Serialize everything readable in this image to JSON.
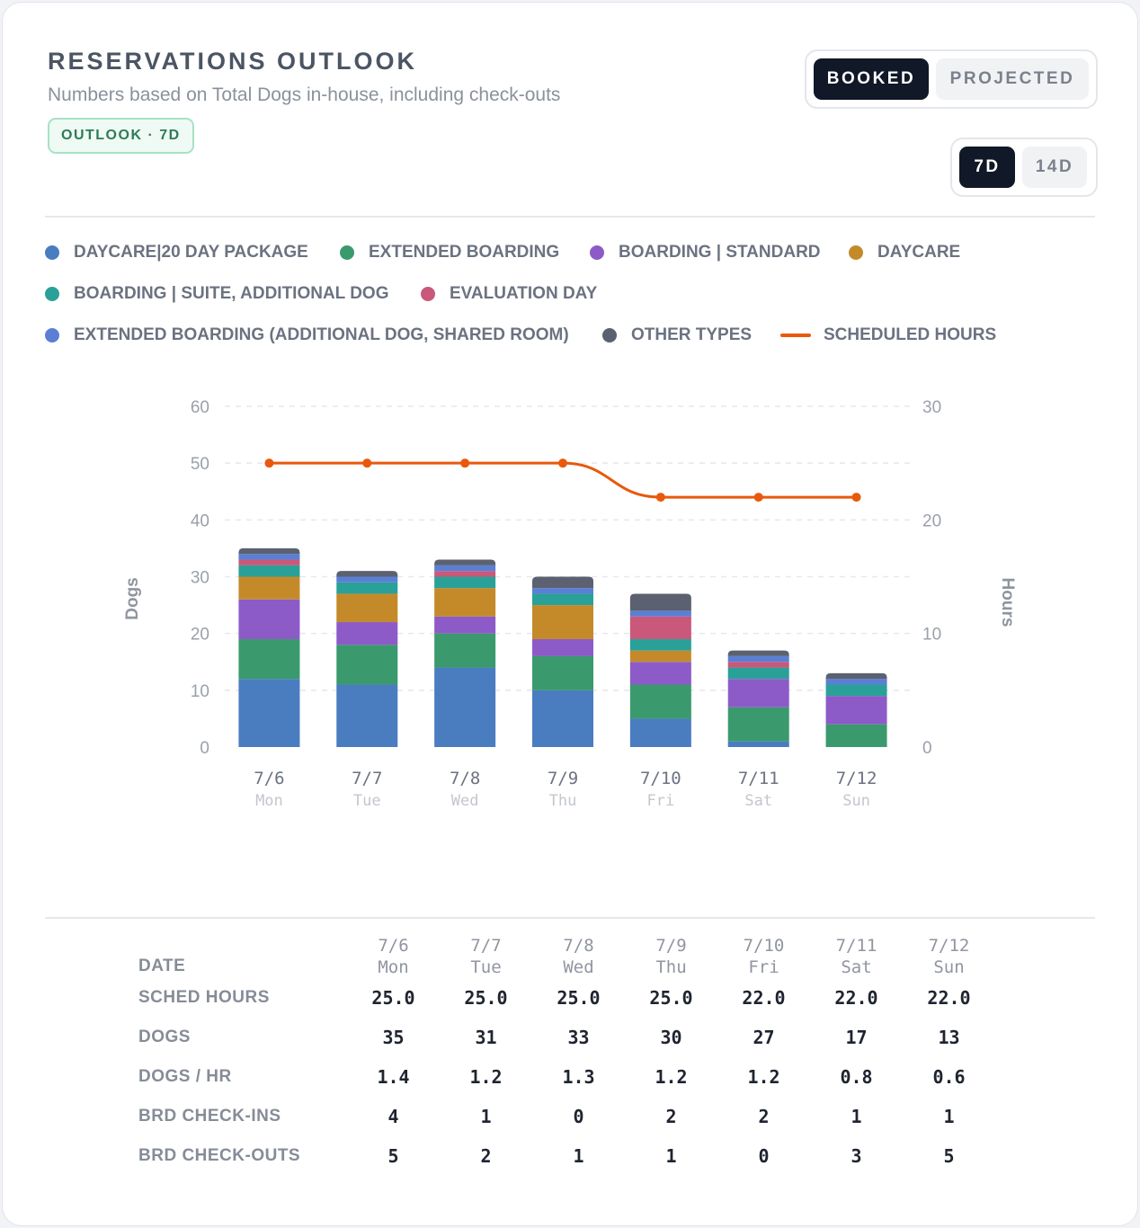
{
  "header": {
    "title": "RESERVATIONS OUTLOOK",
    "subtitle": "Numbers based on Total Dogs in-house, including check-outs",
    "badge": "OUTLOOK · 7D"
  },
  "view_toggle": {
    "options": [
      "BOOKED",
      "PROJECTED"
    ],
    "selected": "BOOKED"
  },
  "range_toggle": {
    "options": [
      "7D",
      "14D"
    ],
    "selected": "7D"
  },
  "legend": [
    {
      "label": "DAYCARE|20 DAY PACKAGE",
      "color": "#4a7cc0",
      "kind": "dot"
    },
    {
      "label": "EXTENDED BOARDING",
      "color": "#3a9a6e",
      "kind": "dot"
    },
    {
      "label": "BOARDING | STANDARD",
      "color": "#8c5bc8",
      "kind": "dot"
    },
    {
      "label": "DAYCARE",
      "color": "#c48a2a",
      "kind": "dot"
    },
    {
      "label": "BOARDING | SUITE, ADDITIONAL DOG",
      "color": "#2aa198",
      "kind": "dot"
    },
    {
      "label": "EVALUATION DAY",
      "color": "#c9587a",
      "kind": "dot"
    },
    {
      "label": "EXTENDED BOARDING (ADDITIONAL DOG, SHARED ROOM)",
      "color": "#5b7fd4",
      "kind": "dot"
    },
    {
      "label": "OTHER TYPES",
      "color": "#5b6170",
      "kind": "dot"
    },
    {
      "label": "SCHEDULED HOURS",
      "color": "#e8590c",
      "kind": "line"
    }
  ],
  "chart_data": {
    "type": "bar",
    "stacked": true,
    "categories": [
      "7/6",
      "7/7",
      "7/8",
      "7/9",
      "7/10",
      "7/11",
      "7/12"
    ],
    "category_sublabels": [
      "Mon",
      "Tue",
      "Wed",
      "Thu",
      "Fri",
      "Sat",
      "Sun"
    ],
    "ylabel": "Dogs",
    "y2label": "Hours",
    "ylim": [
      0,
      60
    ],
    "y2lim": [
      0,
      30
    ],
    "yticks": [
      0,
      10,
      20,
      30,
      40,
      50,
      60
    ],
    "y2ticks": [
      0,
      10,
      20,
      30
    ],
    "grid": true,
    "legend_position": "top",
    "series": [
      {
        "name": "DAYCARE|20 DAY PACKAGE",
        "color": "#4a7cc0",
        "values": [
          12,
          11,
          14,
          10,
          5,
          1,
          0
        ]
      },
      {
        "name": "EXTENDED BOARDING",
        "color": "#3a9a6e",
        "values": [
          7,
          7,
          6,
          6,
          6,
          6,
          4
        ]
      },
      {
        "name": "BOARDING | STANDARD",
        "color": "#8c5bc8",
        "values": [
          7,
          4,
          3,
          3,
          4,
          5,
          5
        ]
      },
      {
        "name": "DAYCARE",
        "color": "#c48a2a",
        "values": [
          4,
          5,
          5,
          6,
          2,
          0,
          0
        ]
      },
      {
        "name": "BOARDING | SUITE, ADDITIONAL DOG",
        "color": "#2aa198",
        "values": [
          2,
          2,
          2,
          2,
          2,
          2,
          2
        ]
      },
      {
        "name": "EVALUATION DAY",
        "color": "#c9587a",
        "values": [
          1,
          0,
          1,
          0,
          4,
          1,
          0
        ]
      },
      {
        "name": "EXTENDED BOARDING (ADDITIONAL DOG, SHARED ROOM)",
        "color": "#5b7fd4",
        "values": [
          1,
          1,
          1,
          1,
          1,
          1,
          1
        ]
      },
      {
        "name": "OTHER TYPES",
        "color": "#5b6170",
        "values": [
          1,
          1,
          1,
          2,
          3,
          1,
          1
        ]
      }
    ],
    "line_series": {
      "name": "SCHEDULED HOURS",
      "color": "#e8590c",
      "axis": "y2",
      "values": [
        25,
        25,
        25,
        25,
        22,
        22,
        22
      ]
    }
  },
  "table": {
    "date_label": "DATE",
    "dates": [
      "7/6",
      "7/7",
      "7/8",
      "7/9",
      "7/10",
      "7/11",
      "7/12"
    ],
    "days": [
      "Mon",
      "Tue",
      "Wed",
      "Thu",
      "Fri",
      "Sat",
      "Sun"
    ],
    "rows": [
      {
        "label": "SCHED HOURS",
        "values": [
          "25.0",
          "25.0",
          "25.0",
          "25.0",
          "22.0",
          "22.0",
          "22.0"
        ]
      },
      {
        "label": "DOGS",
        "values": [
          "35",
          "31",
          "33",
          "30",
          "27",
          "17",
          "13"
        ]
      },
      {
        "label": "DOGS / HR",
        "values": [
          "1.4",
          "1.2",
          "1.3",
          "1.2",
          "1.2",
          "0.8",
          "0.6"
        ]
      },
      {
        "label": "BRD CHECK-INS",
        "values": [
          "4",
          "1",
          "0",
          "2",
          "2",
          "1",
          "1"
        ]
      },
      {
        "label": "BRD CHECK-OUTS",
        "values": [
          "5",
          "2",
          "1",
          "1",
          "0",
          "3",
          "5"
        ]
      }
    ]
  }
}
